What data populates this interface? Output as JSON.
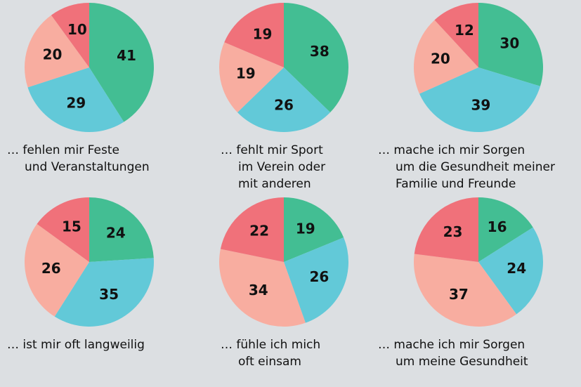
{
  "chart_data": [
    {
      "type": "pie",
      "title": [
        "… fehlen mir Feste",
        "und Veranstaltungen"
      ],
      "values": [
        41,
        29,
        20,
        10
      ],
      "colors": [
        "#43be93",
        "#62c9d8",
        "#f8ada0",
        "#f0717a"
      ]
    },
    {
      "type": "pie",
      "title": [
        "… fehlt mir Sport",
        "im Verein oder",
        "mit anderen"
      ],
      "values": [
        38,
        26,
        19,
        19
      ],
      "colors": [
        "#43be93",
        "#62c9d8",
        "#f8ada0",
        "#f0717a"
      ]
    },
    {
      "type": "pie",
      "title": [
        "… mache ich mir Sorgen",
        "um die Gesundheit meiner",
        "Familie und Freunde"
      ],
      "values": [
        30,
        39,
        20,
        12
      ],
      "colors": [
        "#43be93",
        "#62c9d8",
        "#f8ada0",
        "#f0717a"
      ]
    },
    {
      "type": "pie",
      "title": [
        "… ist mir oft langweilig"
      ],
      "values": [
        24,
        35,
        26,
        15
      ],
      "colors": [
        "#43be93",
        "#62c9d8",
        "#f8ada0",
        "#f0717a"
      ]
    },
    {
      "type": "pie",
      "title": [
        "… fühle ich mich",
        "oft einsam"
      ],
      "values": [
        19,
        26,
        34,
        22
      ],
      "colors": [
        "#43be93",
        "#62c9d8",
        "#f8ada0",
        "#f0717a"
      ]
    },
    {
      "type": "pie",
      "title": [
        "… mache ich mir Sorgen",
        "um meine Gesundheit"
      ],
      "values": [
        16,
        24,
        37,
        23
      ],
      "colors": [
        "#43be93",
        "#62c9d8",
        "#f8ada0",
        "#f0717a"
      ]
    }
  ]
}
